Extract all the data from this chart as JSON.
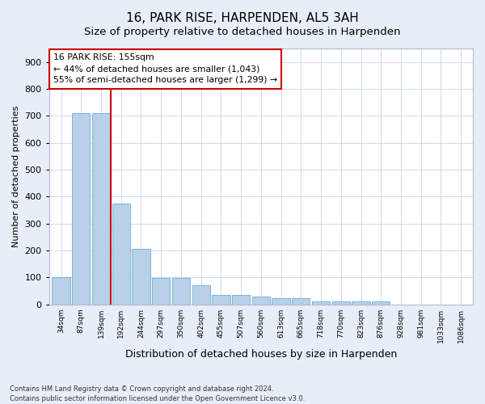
{
  "title": "16, PARK RISE, HARPENDEN, AL5 3AH",
  "subtitle": "Size of property relative to detached houses in Harpenden",
  "xlabel": "Distribution of detached houses by size in Harpenden",
  "ylabel": "Number of detached properties",
  "categories": [
    "34sqm",
    "87sqm",
    "139sqm",
    "192sqm",
    "244sqm",
    "297sqm",
    "350sqm",
    "402sqm",
    "455sqm",
    "507sqm",
    "560sqm",
    "613sqm",
    "665sqm",
    "718sqm",
    "770sqm",
    "823sqm",
    "876sqm",
    "928sqm",
    "981sqm",
    "1033sqm",
    "1086sqm"
  ],
  "values": [
    100,
    710,
    710,
    375,
    205,
    98,
    98,
    72,
    35,
    35,
    28,
    23,
    23,
    12,
    12,
    10,
    10,
    0,
    0,
    0,
    0
  ],
  "bar_color": "#b8d0e8",
  "bar_edgecolor": "#6aaed6",
  "vline_x": 2.5,
  "vline_color": "#cc0000",
  "annotation_text": "16 PARK RISE: 155sqm\n← 44% of detached houses are smaller (1,043)\n55% of semi-detached houses are larger (1,299) →",
  "annotation_box_color": "#cc0000",
  "ylim": [
    0,
    950
  ],
  "yticks": [
    0,
    100,
    200,
    300,
    400,
    500,
    600,
    700,
    800,
    900
  ],
  "footer": "Contains HM Land Registry data © Crown copyright and database right 2024.\nContains public sector information licensed under the Open Government Licence v3.0.",
  "bg_color": "#e8eef8",
  "plot_bg_color": "#ffffff",
  "title_fontsize": 11,
  "subtitle_fontsize": 9.5
}
